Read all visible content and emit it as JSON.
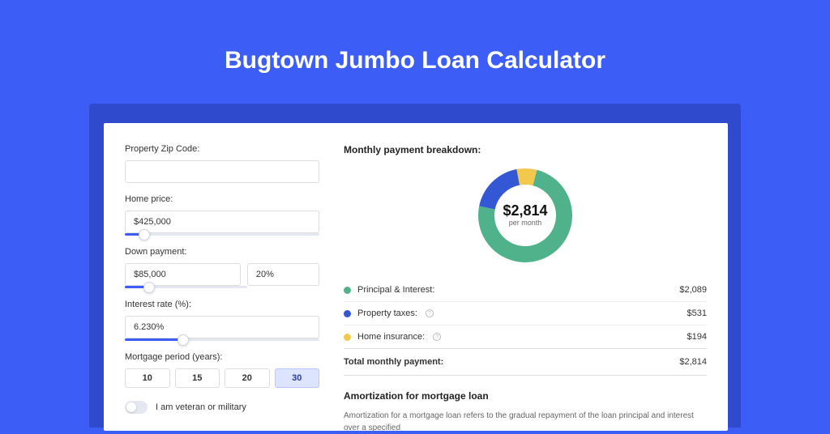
{
  "page": {
    "title": "Bugtown Jumbo Loan Calculator",
    "bg_color": "#3c5ef7",
    "shadow_color": "#2f4acc",
    "card_color": "#ffffff"
  },
  "form": {
    "zip_label": "Property Zip Code:",
    "zip_value": "",
    "home_price_label": "Home price:",
    "home_price_value": "$425,000",
    "home_price_slider_pct": 10,
    "down_payment_label": "Down payment:",
    "down_payment_amount": "$85,000",
    "down_payment_pct": "20%",
    "down_payment_slider_pct": 20,
    "interest_label": "Interest rate (%):",
    "interest_value": "6.230%",
    "interest_slider_pct": 30,
    "period_label": "Mortgage period (years):",
    "periods": [
      "10",
      "15",
      "20",
      "30"
    ],
    "period_selected": "30",
    "veteran_label": "I am veteran or military",
    "veteran_on": false
  },
  "breakdown": {
    "title": "Monthly payment breakdown:",
    "center_amount": "$2,814",
    "center_sub": "per month",
    "donut": {
      "slices": [
        {
          "label": "Principal & Interest:",
          "value": "$2,089",
          "color": "#4fb28b",
          "fraction": 0.742
        },
        {
          "label": "Property taxes:",
          "value": "$531",
          "color": "#3457d5",
          "fraction": 0.189,
          "help": true
        },
        {
          "label": "Home insurance:",
          "value": "$194",
          "color": "#f2c94c",
          "fraction": 0.069,
          "help": true
        }
      ],
      "inner_radius": 38,
      "outer_radius": 58,
      "bg": "#ffffff"
    },
    "total_label": "Total monthly payment:",
    "total_value": "$2,814"
  },
  "amort": {
    "title": "Amortization for mortgage loan",
    "text": "Amortization for a mortgage loan refers to the gradual repayment of the loan principal and interest over a specified"
  }
}
